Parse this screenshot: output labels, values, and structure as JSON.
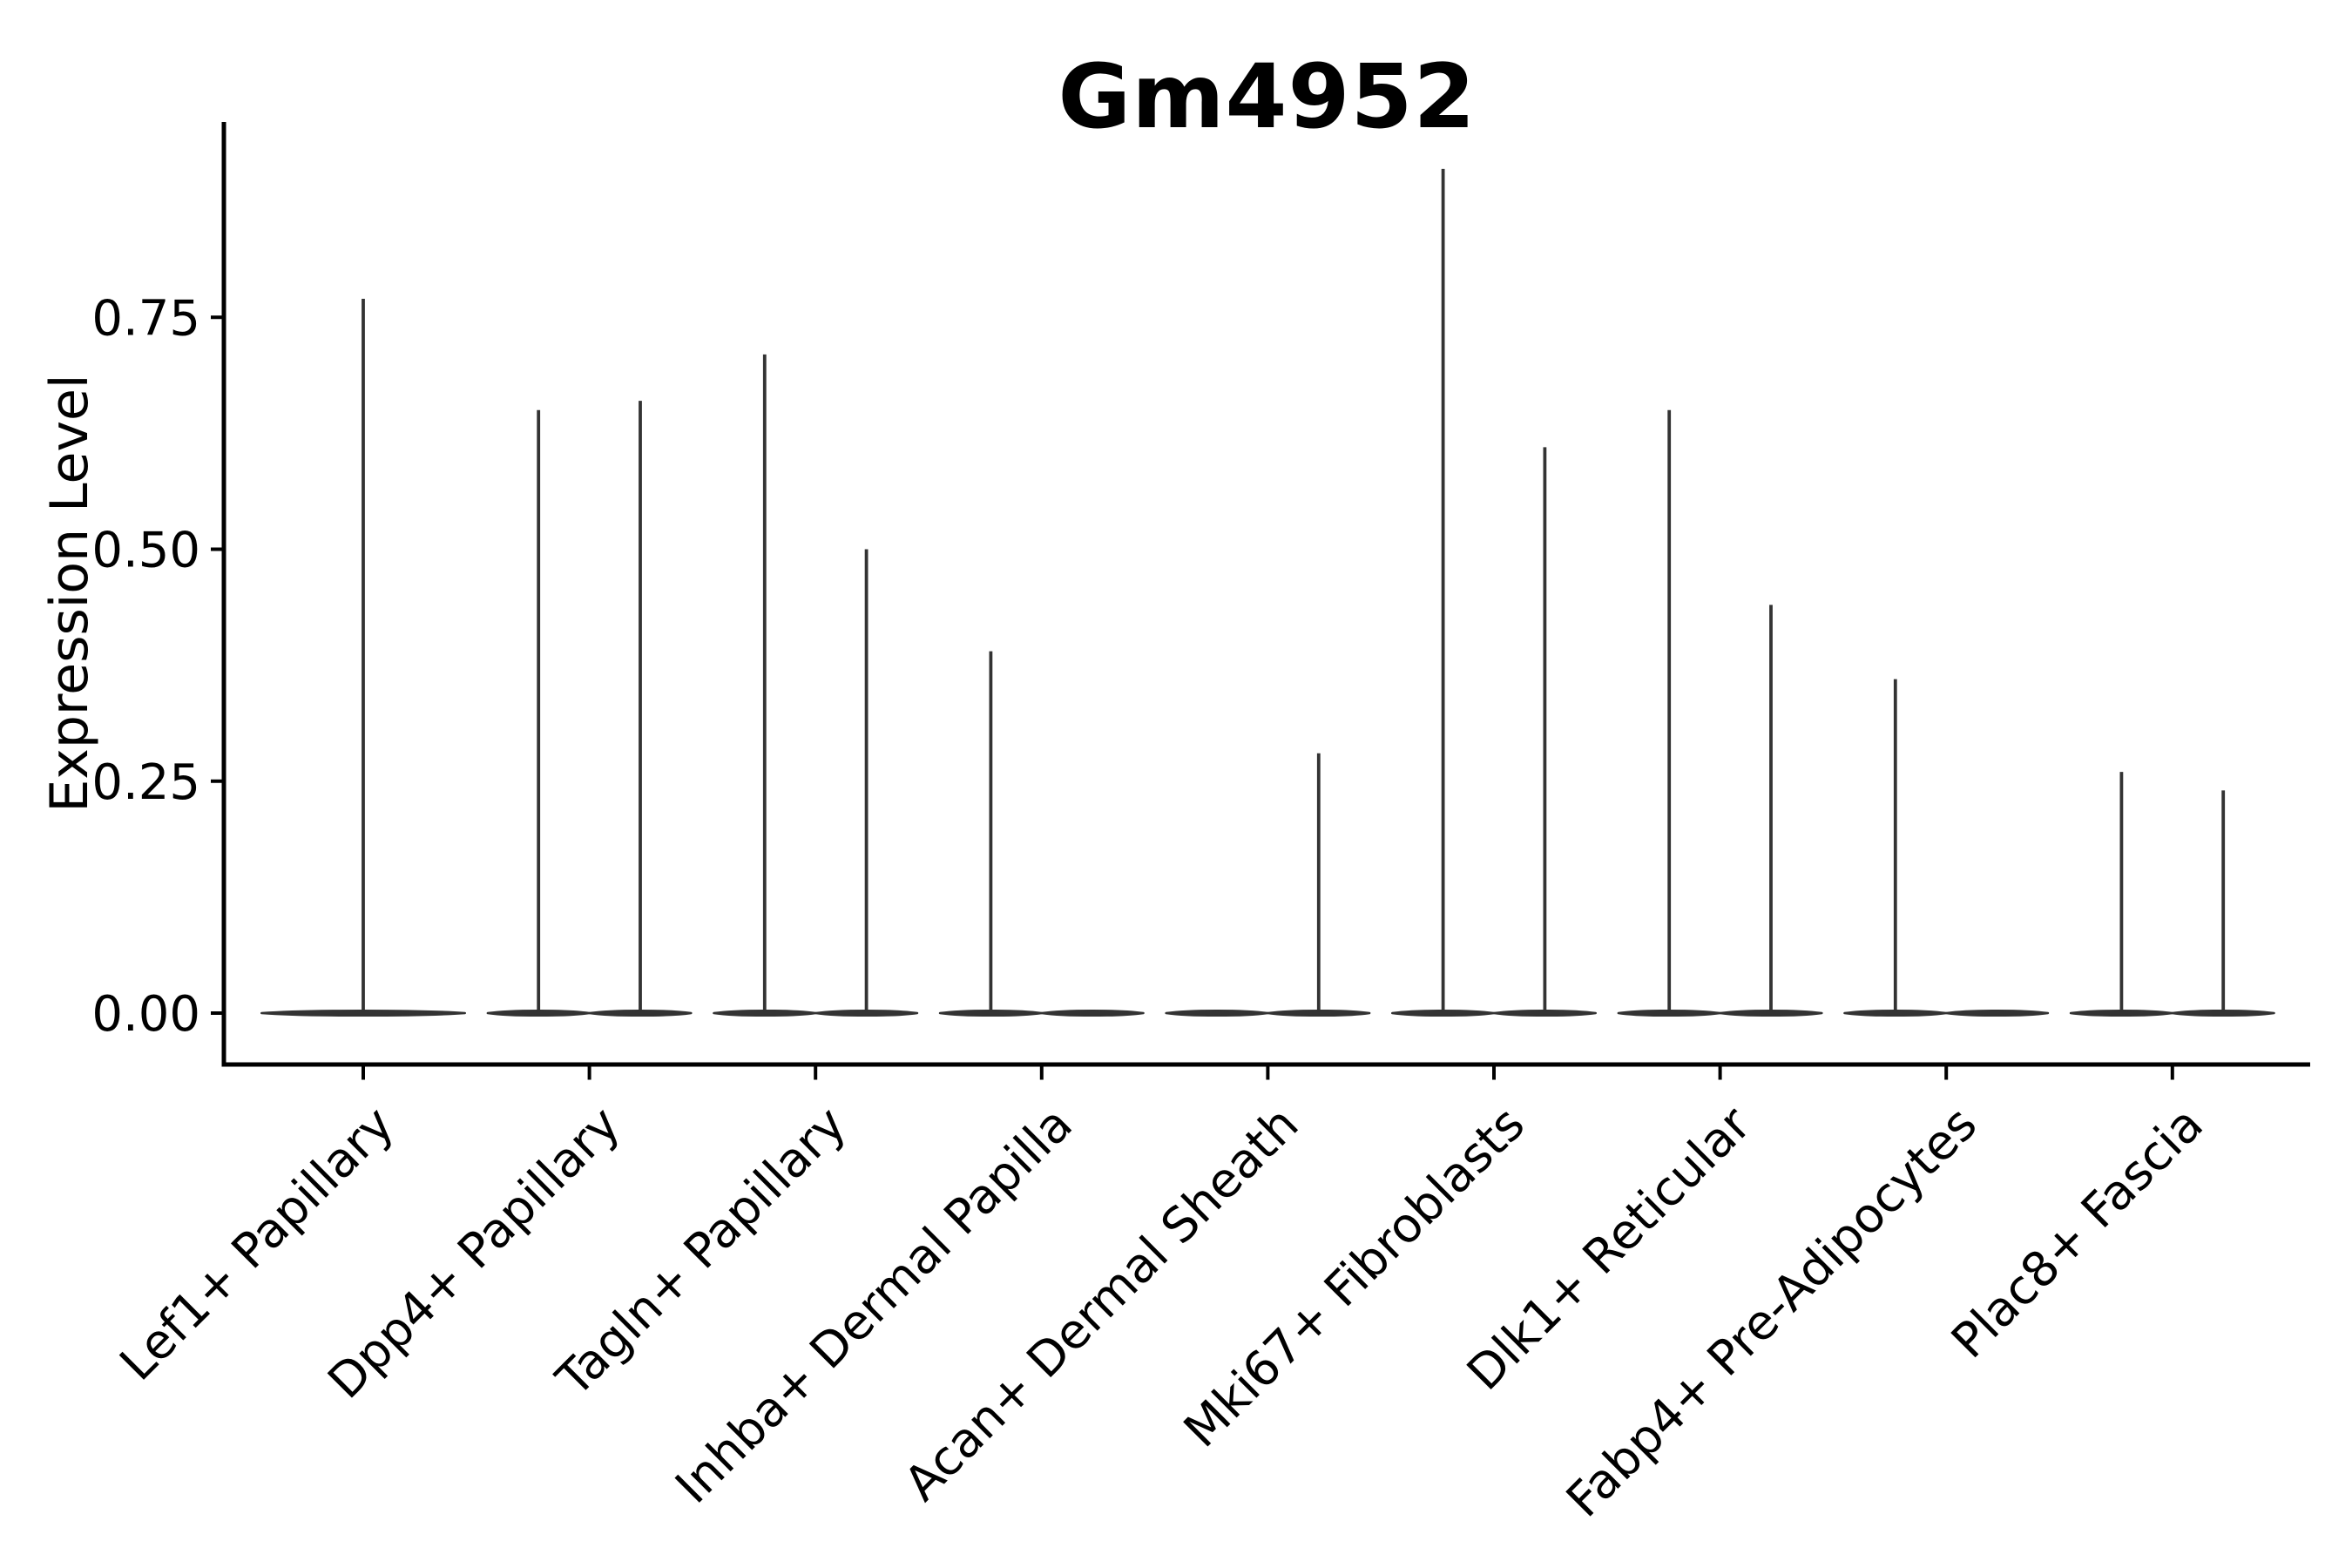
{
  "chart_data": {
    "type": "violin",
    "title": "Gm4952",
    "ylabel": "Expression Level",
    "xlabel": "",
    "ylim": [
      -0.05,
      0.96
    ],
    "grid": false,
    "legend": "none",
    "yticks": [
      {
        "value": 0.0,
        "label": "0.00"
      },
      {
        "value": 0.25,
        "label": "0.25"
      },
      {
        "value": 0.5,
        "label": "0.50"
      },
      {
        "value": 0.75,
        "label": "0.75"
      }
    ],
    "categories": [
      "Lef1+ Papillary",
      "Dpp4+ Papillary",
      "Tagln+ Papillary",
      "Inhba+ Dermal Papilla",
      "Acan+ Dermal Sheath",
      "Mki67+ Fibroblasts",
      "Dlk1+ Reticular",
      "Fabp4+ Pre-Adipocytes",
      "Plac8+ Fascia"
    ],
    "violin_shape_note": "Each violin is collapsed flat at expression 0 with a single thin density spike rising to the maximum expression value",
    "groups": [
      {
        "category": "Lef1+ Papillary",
        "violins": [
          {
            "side": "center",
            "width": "full",
            "baseline_value": 0,
            "max_expression": 0.77
          }
        ]
      },
      {
        "category": "Dpp4+ Papillary",
        "violins": [
          {
            "side": "left",
            "width": "half",
            "baseline_value": 0,
            "max_expression": 0.65
          },
          {
            "side": "right",
            "width": "half",
            "baseline_value": 0,
            "max_expression": 0.66
          }
        ]
      },
      {
        "category": "Tagln+ Papillary",
        "violins": [
          {
            "side": "left",
            "width": "half",
            "baseline_value": 0,
            "max_expression": 0.71
          },
          {
            "side": "right",
            "width": "half",
            "baseline_value": 0,
            "max_expression": 0.5
          }
        ]
      },
      {
        "category": "Inhba+ Dermal Papilla",
        "violins": [
          {
            "side": "left",
            "width": "half",
            "baseline_value": 0,
            "max_expression": 0.39
          },
          {
            "side": "right",
            "width": "half",
            "baseline_value": 0,
            "max_expression": 0.0
          }
        ]
      },
      {
        "category": "Acan+ Dermal Sheath",
        "violins": [
          {
            "side": "left",
            "width": "half",
            "baseline_value": 0,
            "max_expression": 0.0
          },
          {
            "side": "right",
            "width": "half",
            "baseline_value": 0,
            "max_expression": 0.28
          }
        ]
      },
      {
        "category": "Mki67+ Fibroblasts",
        "violins": [
          {
            "side": "left",
            "width": "half",
            "baseline_value": 0,
            "max_expression": 0.91
          },
          {
            "side": "right",
            "width": "half",
            "baseline_value": 0,
            "max_expression": 0.61
          }
        ]
      },
      {
        "category": "Dlk1+ Reticular",
        "violins": [
          {
            "side": "left",
            "width": "half",
            "baseline_value": 0,
            "max_expression": 0.65
          },
          {
            "side": "right",
            "width": "half",
            "baseline_value": 0,
            "max_expression": 0.44
          }
        ]
      },
      {
        "category": "Fabp4+ Pre-Adipocytes",
        "violins": [
          {
            "side": "left",
            "width": "half",
            "baseline_value": 0,
            "max_expression": 0.36
          },
          {
            "side": "right",
            "width": "half",
            "baseline_value": 0,
            "max_expression": 0.0
          }
        ]
      },
      {
        "category": "Plac8+ Fascia",
        "violins": [
          {
            "side": "left",
            "width": "half",
            "baseline_value": 0,
            "max_expression": 0.26
          },
          {
            "side": "right",
            "width": "half",
            "baseline_value": 0,
            "max_expression": 0.24
          }
        ]
      }
    ],
    "style": {
      "violin_color": "#333333",
      "axis_color": "#000000",
      "text_color": "#000000",
      "background": "#ffffff"
    }
  }
}
